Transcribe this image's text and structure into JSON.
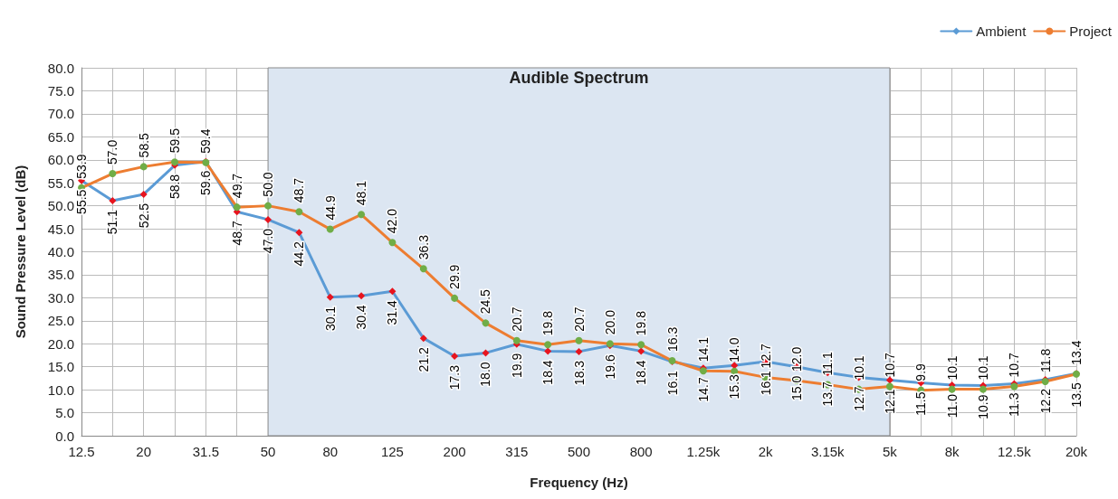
{
  "chart_data": {
    "type": "line",
    "xlabel": "Frequency (Hz)",
    "ylabel": "Sound Pressure Level (dB)",
    "categories": [
      "12.5",
      null,
      "20",
      null,
      "31.5",
      null,
      "50",
      null,
      "80",
      null,
      "125",
      null,
      "200",
      null,
      "315",
      null,
      "500",
      null,
      "800",
      null,
      "1.25k",
      null,
      "2k",
      null,
      "3.15k",
      null,
      "5k",
      null,
      "8k",
      null,
      "12.5k",
      null,
      "20k"
    ],
    "series": [
      {
        "name": "Ambient",
        "color": "#5b9bd5",
        "marker": "diamond",
        "colors": [
          "#e8141e",
          "#e8141e",
          "#e8141e",
          "#e8141e",
          "#e8141e",
          "#e8141e",
          "#e8141e",
          "#e8141e",
          "#e8141e",
          "#e8141e",
          "#e8141e",
          "#e8141e",
          "#e8141e",
          "#e8141e",
          "#e8141e",
          "#e8141e",
          "#e8141e",
          "#e8141e",
          "#e8141e",
          "#e8141e",
          "#e8141e",
          "#e8141e",
          "#e8141e",
          "#e8141e",
          "#e8141e",
          "#e8141e",
          "#e8141e",
          "#e8141e",
          "#e8141e",
          "#e8141e",
          "#e8141e",
          "#e8141e",
          "#e8141e"
        ],
        "values": [
          55.5,
          51.1,
          52.5,
          58.8,
          59.6,
          48.7,
          47.0,
          44.2,
          30.1,
          30.4,
          31.4,
          21.2,
          17.3,
          18.0,
          19.9,
          18.4,
          18.3,
          19.6,
          18.4,
          16.1,
          14.7,
          15.3,
          16.1,
          15.0,
          13.7,
          12.7,
          12.1,
          11.5,
          11.0,
          10.9,
          11.3,
          12.2,
          13.5
        ],
        "value_labels": [
          "55.5",
          "51.1",
          "52.5",
          "58.8",
          "59.6",
          "48.7",
          "47.0",
          "44.2",
          "30.1",
          "30.4",
          "31.4",
          "21.2",
          "17.3",
          "18.0",
          "19.9",
          "18.4",
          "18.3",
          "19.6",
          "18.4",
          "16.1",
          "14.7",
          "15.3",
          "16.1",
          "15.0",
          "13.7",
          "12.7",
          "12.1",
          "11.5",
          "11.0",
          "10.9",
          "11.3",
          "12.2",
          "13.5"
        ]
      },
      {
        "name": "Project",
        "color": "#ed7d31",
        "marker": "circle",
        "colors": [
          "#70ad47",
          "#70ad47",
          "#70ad47",
          "#70ad47",
          "#70ad47",
          "#70ad47",
          "#70ad47",
          "#70ad47",
          "#70ad47",
          "#70ad47",
          "#70ad47",
          "#70ad47",
          "#70ad47",
          "#70ad47",
          "#70ad47",
          "#70ad47",
          "#70ad47",
          "#70ad47",
          "#70ad47",
          "#70ad47",
          "#70ad47",
          "#70ad47",
          "#70ad47",
          "#70ad47",
          "#70ad47",
          "#70ad47",
          "#70ad47",
          "#70ad47",
          "#70ad47",
          "#70ad47",
          "#70ad47",
          "#70ad47",
          "#70ad47"
        ],
        "values": [
          53.9,
          57.0,
          58.5,
          59.5,
          59.4,
          49.7,
          50.0,
          48.7,
          44.9,
          48.1,
          42.0,
          36.3,
          29.9,
          24.5,
          20.7,
          19.8,
          20.7,
          20.0,
          19.8,
          16.3,
          14.1,
          14.0,
          12.7,
          12.0,
          11.1,
          10.1,
          10.7,
          9.9,
          10.1,
          10.1,
          10.7,
          11.8,
          13.4
        ],
        "value_labels": [
          "53.9",
          "57.0",
          "58.5",
          "59.5",
          "59.4",
          "49.7",
          "50.0",
          "48.7",
          "44.9",
          "48.1",
          "42.0",
          "36.3",
          "29.9",
          "24.5",
          "20.7",
          "19.8",
          "20.7",
          "20.0",
          "19.8",
          "16.3",
          "14.1",
          "14.0",
          "12.7",
          "12.0",
          "11.1",
          "10.1",
          "10.7",
          "9.9",
          "10.1",
          "10.1",
          "10.7",
          "11.8",
          "13.4"
        ]
      }
    ],
    "ylim": [
      0,
      80
    ],
    "yticks": [
      {
        "value": 0,
        "label": "0.0"
      },
      {
        "value": 5,
        "label": "5.0"
      },
      {
        "value": 10,
        "label": "10.0"
      },
      {
        "value": 15,
        "label": "15.0"
      },
      {
        "value": 20,
        "label": "20.0"
      },
      {
        "value": 25,
        "label": "25.0"
      },
      {
        "value": 30,
        "label": "30.0"
      },
      {
        "value": 35,
        "label": "35.0"
      },
      {
        "value": 40,
        "label": "40.0"
      },
      {
        "value": 45,
        "label": "45.0"
      },
      {
        "value": 50,
        "label": "50.0"
      },
      {
        "value": 55,
        "label": "55.0"
      },
      {
        "value": 60,
        "label": "60.0"
      },
      {
        "value": 65,
        "label": "65.0"
      },
      {
        "value": 70,
        "label": "70.0"
      },
      {
        "value": 75,
        "label": "75.0"
      },
      {
        "value": 80,
        "label": "80.0"
      }
    ],
    "bands": [
      {
        "axis": "x",
        "from": "50",
        "to": "5k",
        "label": "Audible Spectrum",
        "color": "#dce6f2"
      }
    ],
    "grid": true,
    "legend": "top right",
    "line_style": "solid"
  }
}
